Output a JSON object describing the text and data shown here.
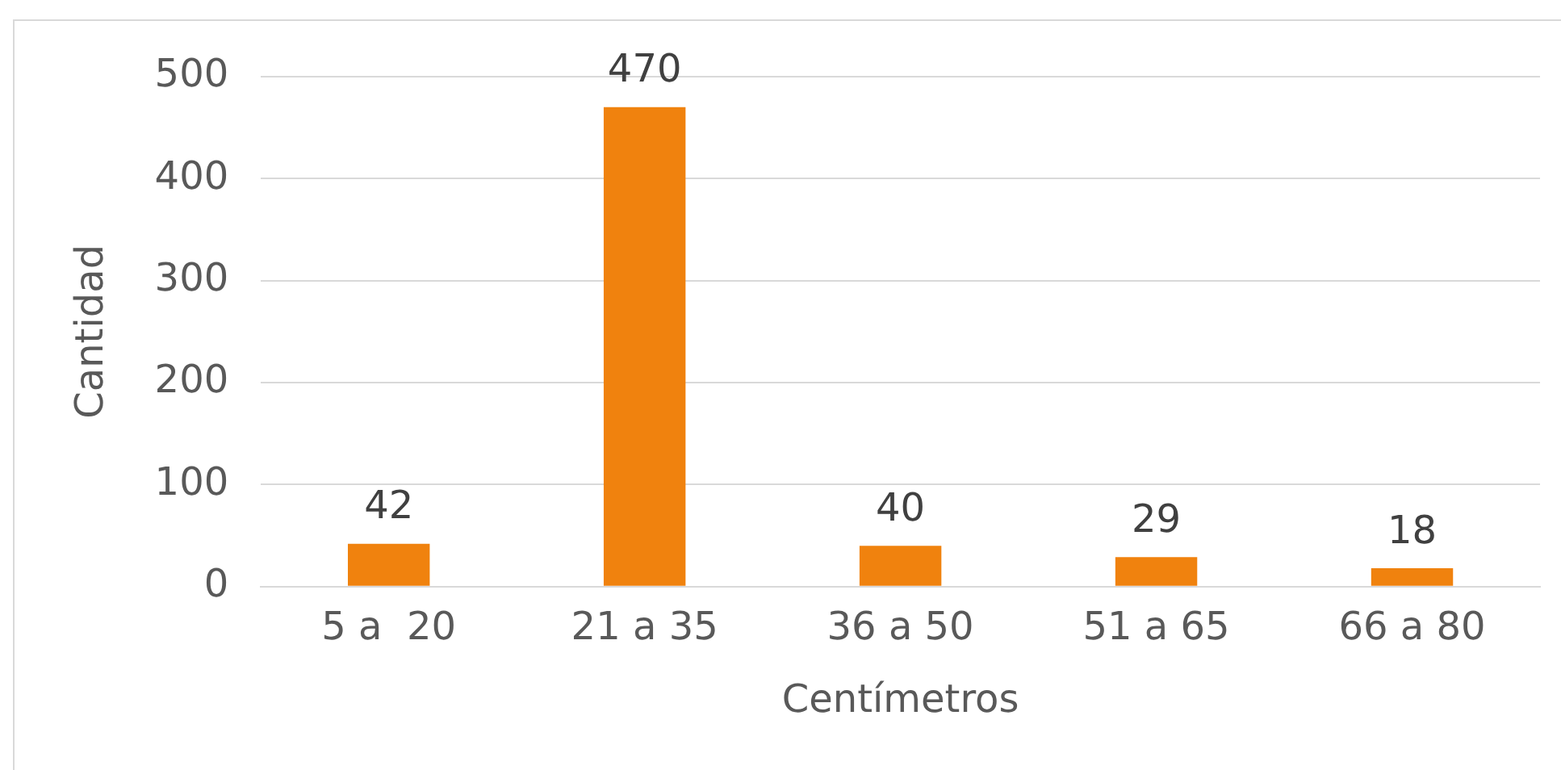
{
  "chart_data": {
    "type": "bar",
    "xlabel": "Centímetros",
    "ylabel": "Cantidad",
    "categories": [
      "5 a  20",
      "21 a 35",
      "36 a 50",
      "51 a 65",
      "66 a 80"
    ],
    "values": [
      42,
      470,
      40,
      29,
      18
    ],
    "color": "#f0820e",
    "ylim": [
      0,
      500
    ],
    "yticks": [
      0,
      100,
      200,
      300,
      400,
      500
    ],
    "grid": "y",
    "data_labels": true
  }
}
